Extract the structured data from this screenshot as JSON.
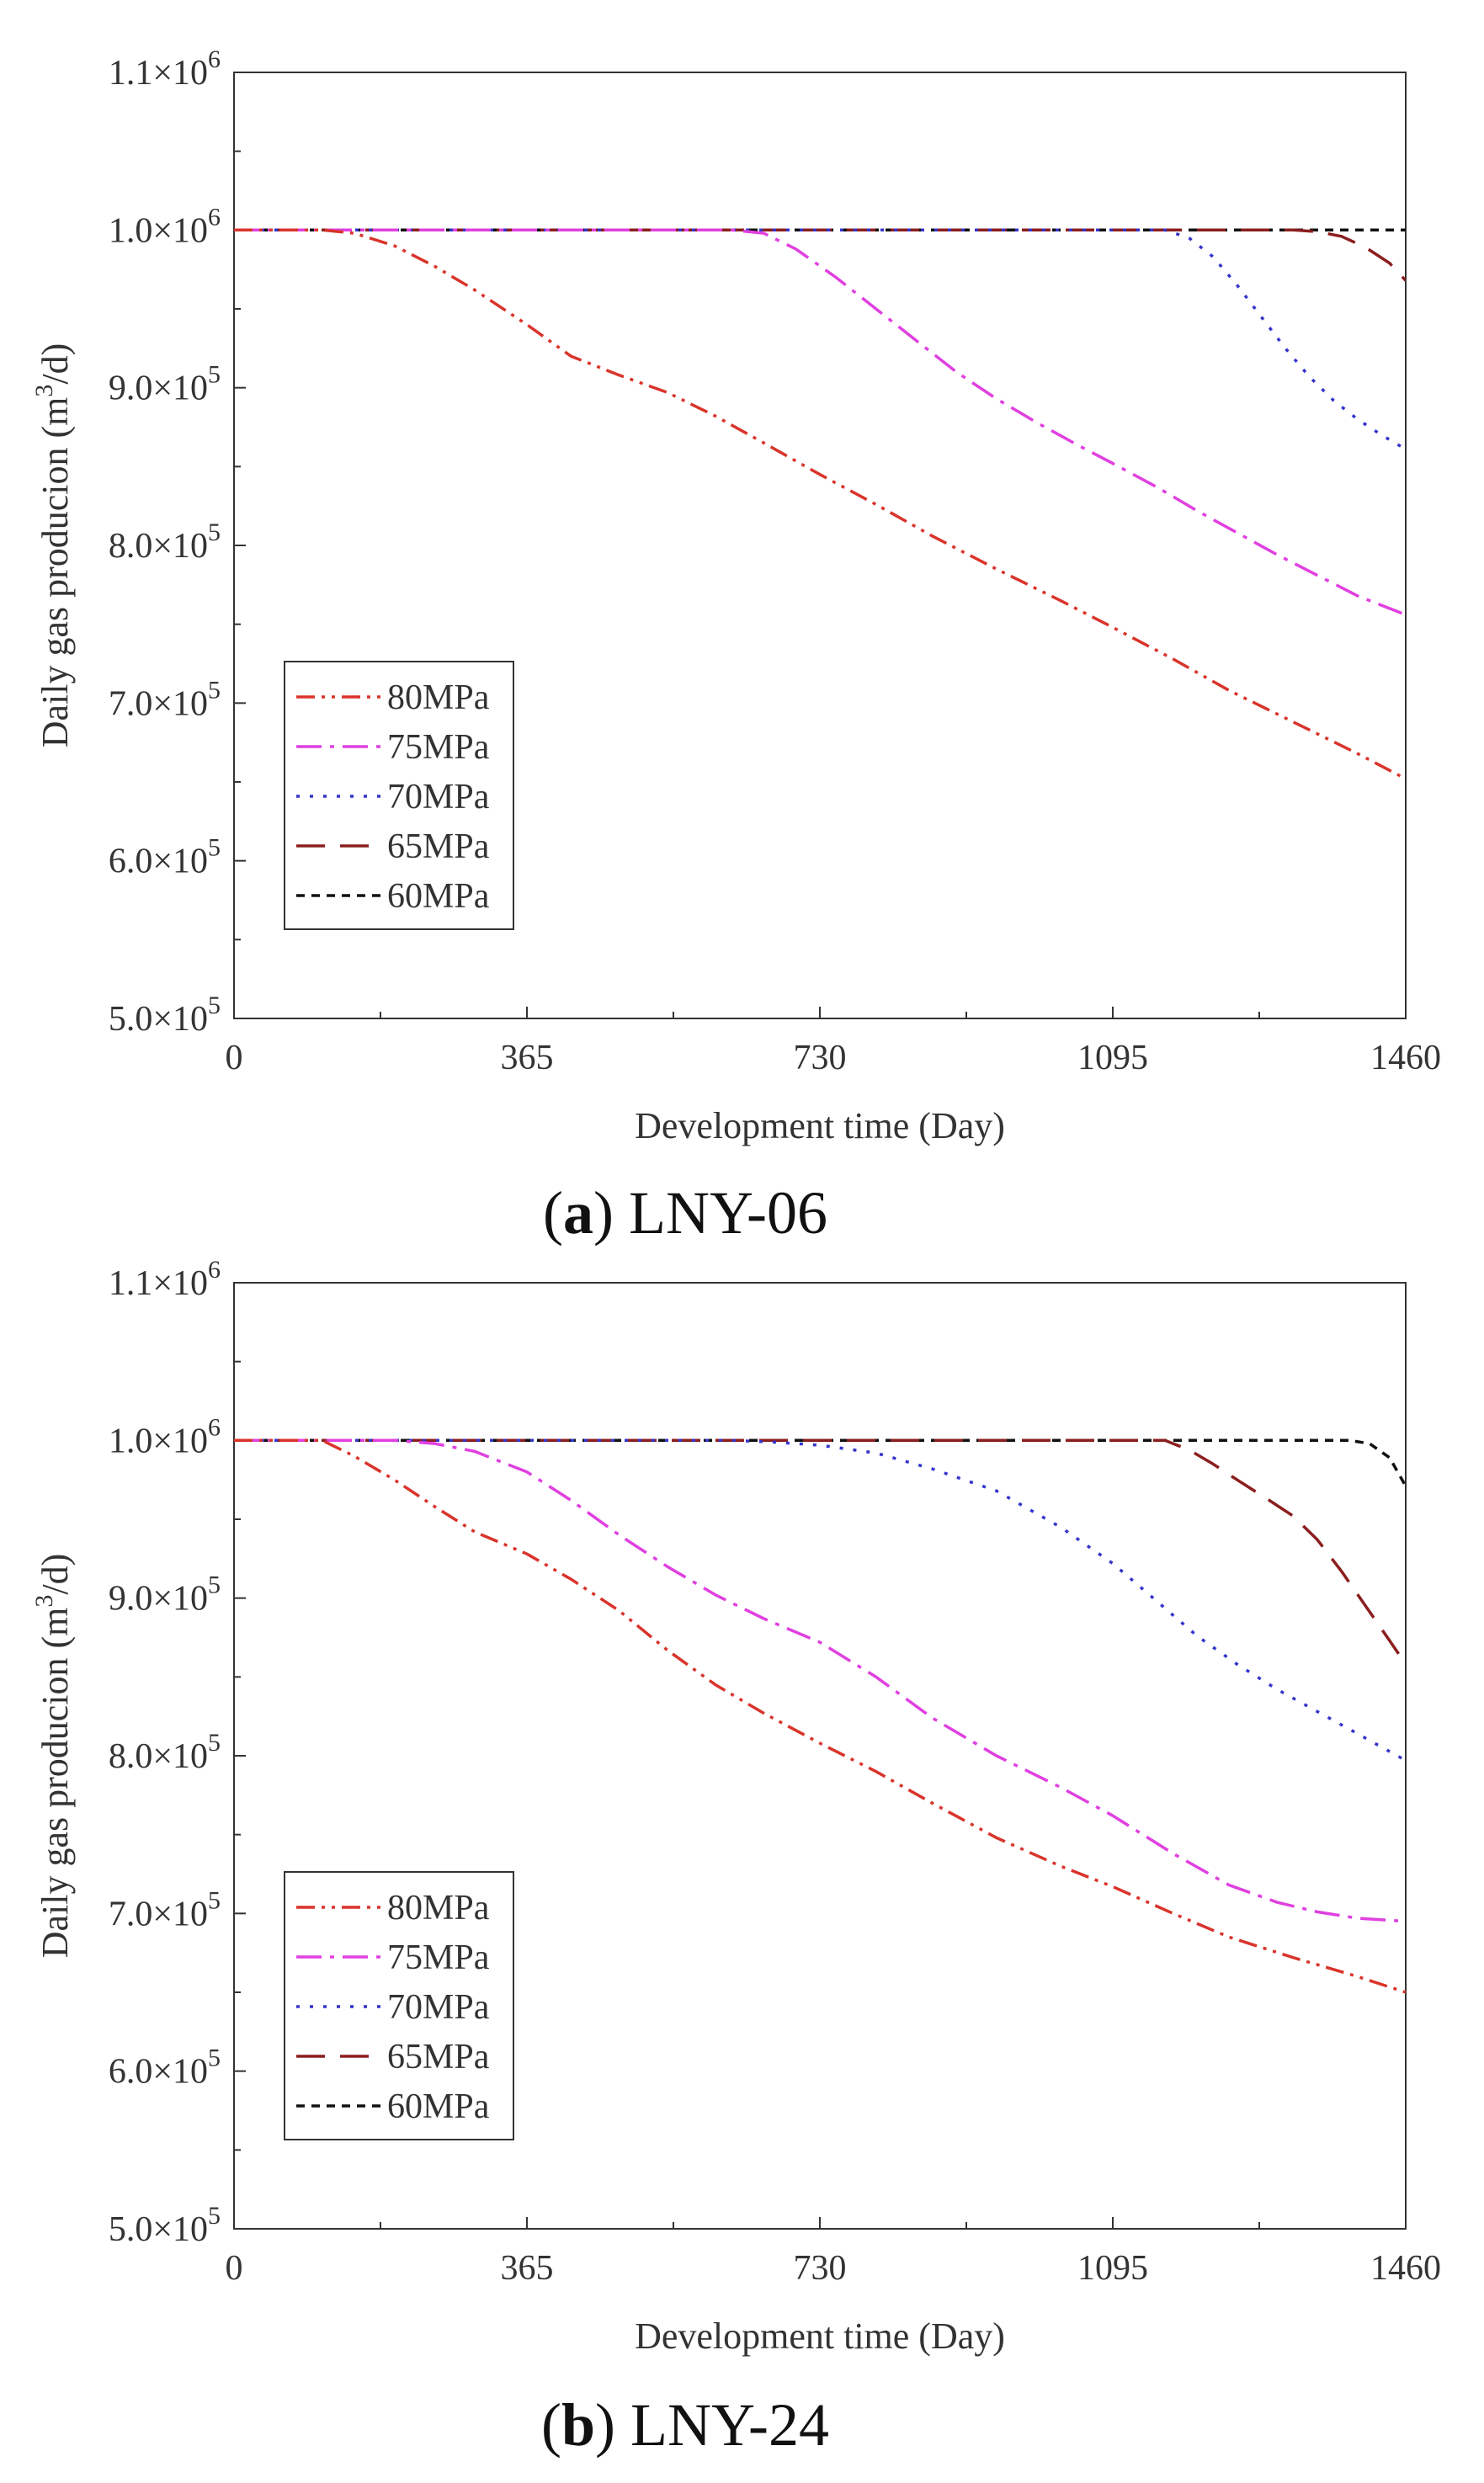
{
  "chart_data": [
    {
      "type": "line",
      "panel_letter": "a",
      "caption": "LNY-06",
      "xlabel": "Development time (Day)",
      "ylabel": "Daily gas producion (m3/d)",
      "ylabel_parts": {
        "before": "Daily gas producion (m",
        "sup": "3",
        "after": "/d)"
      },
      "xlim": [
        0,
        1460
      ],
      "ylim": [
        500000,
        1100000
      ],
      "xticks": [
        0,
        365,
        730,
        1095,
        1460
      ],
      "xtick_labels": [
        "0",
        "365",
        "730",
        "1095",
        "1460"
      ],
      "yticks": [
        500000,
        600000,
        700000,
        800000,
        900000,
        1000000,
        1100000
      ],
      "ytick_labels": [
        {
          "mant": "5.0×10",
          "exp": "5"
        },
        {
          "mant": "6.0×10",
          "exp": "5"
        },
        {
          "mant": "7.0×10",
          "exp": "5"
        },
        {
          "mant": "8.0×10",
          "exp": "5"
        },
        {
          "mant": "9.0×10",
          "exp": "5"
        },
        {
          "mant": "1.0×10",
          "exp": "6"
        },
        {
          "mant": "1.1×10",
          "exp": "6"
        }
      ],
      "legend_location": "lower-left",
      "series": [
        {
          "name": "80MPa",
          "color": "#d9342b",
          "dash": "dash-dot-dot",
          "x": [
            0,
            110,
            150,
            200,
            250,
            300,
            365,
            420,
            480,
            540,
            600,
            660,
            730,
            800,
            870,
            950,
            1030,
            1095,
            1170,
            1240,
            1320,
            1400,
            1460
          ],
          "y": [
            1000000,
            1000000,
            998000,
            990000,
            977000,
            962000,
            940000,
            920000,
            908000,
            897000,
            882000,
            865000,
            845000,
            826000,
            806000,
            785000,
            765000,
            748000,
            728000,
            708000,
            688000,
            668000,
            652000
          ]
        },
        {
          "name": "75MPa",
          "color": "#e040e0",
          "dash": "long-dash-dot",
          "x": [
            0,
            620,
            660,
            700,
            750,
            800,
            850,
            900,
            950,
            1000,
            1050,
            1095,
            1150,
            1200,
            1250,
            1300,
            1350,
            1400,
            1460
          ],
          "y": [
            1000000,
            1000000,
            998000,
            988000,
            970000,
            950000,
            930000,
            910000,
            893000,
            878000,
            864000,
            852000,
            837000,
            822000,
            808000,
            794000,
            781000,
            768000,
            756000
          ]
        },
        {
          "name": "70MPa",
          "color": "#3434cc",
          "dash": "dotted",
          "x": [
            0,
            1160,
            1190,
            1220,
            1250,
            1280,
            1310,
            1340,
            1370,
            1400,
            1430,
            1460
          ],
          "y": [
            1000000,
            1000000,
            995000,
            983000,
            965000,
            945000,
            925000,
            907000,
            892000,
            880000,
            870000,
            861000
          ]
        },
        {
          "name": "65MPa",
          "color": "#8b1e1e",
          "dash": "long-dash",
          "x": [
            0,
            1320,
            1350,
            1380,
            1410,
            1440,
            1460
          ],
          "y": [
            1000000,
            1000000,
            999000,
            996000,
            989000,
            979000,
            968000
          ]
        },
        {
          "name": "60MPa",
          "color": "#111111",
          "dash": "short-dash",
          "x": [
            0,
            1460
          ],
          "y": [
            1000000,
            1000000
          ]
        }
      ]
    },
    {
      "type": "line",
      "panel_letter": "b",
      "caption": "LNY-24",
      "xlabel": "Development time (Day)",
      "ylabel": "Daily gas producion (m3/d)",
      "ylabel_parts": {
        "before": "Daily gas producion (m",
        "sup": "3",
        "after": "/d)"
      },
      "xlim": [
        0,
        1460
      ],
      "ylim": [
        500000,
        1100000
      ],
      "xticks": [
        0,
        365,
        730,
        1095,
        1460
      ],
      "xtick_labels": [
        "0",
        "365",
        "730",
        "1095",
        "1460"
      ],
      "yticks": [
        500000,
        600000,
        700000,
        800000,
        900000,
        1000000,
        1100000
      ],
      "ytick_labels": [
        {
          "mant": "5.0×10",
          "exp": "5"
        },
        {
          "mant": "6.0×10",
          "exp": "5"
        },
        {
          "mant": "7.0×10",
          "exp": "5"
        },
        {
          "mant": "8.0×10",
          "exp": "5"
        },
        {
          "mant": "9.0×10",
          "exp": "5"
        },
        {
          "mant": "1.0×10",
          "exp": "6"
        },
        {
          "mant": "1.1×10",
          "exp": "6"
        }
      ],
      "legend_location": "lower-left",
      "series": [
        {
          "name": "80MPa",
          "color": "#d9342b",
          "dash": "dash-dot-dot",
          "x": [
            0,
            110,
            150,
            200,
            250,
            300,
            365,
            420,
            480,
            540,
            600,
            660,
            730,
            800,
            870,
            950,
            1030,
            1095,
            1170,
            1240,
            1320,
            1400,
            1460
          ],
          "y": [
            1000000,
            1000000,
            990000,
            975000,
            958000,
            942000,
            928000,
            912000,
            892000,
            867000,
            845000,
            827000,
            808000,
            790000,
            770000,
            748000,
            730000,
            717000,
            700000,
            685000,
            672000,
            660000,
            650000
          ]
        },
        {
          "name": "75MPa",
          "color": "#e040e0",
          "dash": "long-dash-dot",
          "x": [
            0,
            200,
            250,
            300,
            365,
            420,
            480,
            540,
            600,
            660,
            730,
            800,
            870,
            950,
            1030,
            1095,
            1170,
            1240,
            1300,
            1350,
            1400,
            1460
          ],
          "y": [
            1000000,
            1000000,
            998000,
            993000,
            980000,
            962000,
            940000,
            920000,
            902000,
            887000,
            872000,
            850000,
            824000,
            800000,
            780000,
            762000,
            738000,
            718000,
            707000,
            701000,
            697000,
            695000
          ]
        },
        {
          "name": "70MPa",
          "color": "#3434cc",
          "dash": "dotted",
          "x": [
            0,
            620,
            670,
            730,
            800,
            870,
            950,
            1030,
            1095,
            1150,
            1200,
            1250,
            1300,
            1350,
            1400,
            1460
          ],
          "y": [
            1000000,
            1000000,
            999000,
            997000,
            992000,
            982000,
            968000,
            945000,
            922000,
            898000,
            876000,
            858000,
            842000,
            828000,
            814000,
            797000
          ]
        },
        {
          "name": "65MPa",
          "color": "#8b1e1e",
          "dash": "long-dash",
          "x": [
            0,
            1160,
            1190,
            1220,
            1250,
            1290,
            1320,
            1350,
            1380,
            1410,
            1440,
            1460
          ],
          "y": [
            1000000,
            1000000,
            994000,
            985000,
            975000,
            962000,
            952000,
            937000,
            917000,
            895000,
            873000,
            858000
          ]
        },
        {
          "name": "60MPa",
          "color": "#111111",
          "dash": "short-dash",
          "x": [
            0,
            1390,
            1415,
            1440,
            1460
          ],
          "y": [
            1000000,
            1000000,
            998000,
            989000,
            971000
          ]
        }
      ]
    }
  ]
}
